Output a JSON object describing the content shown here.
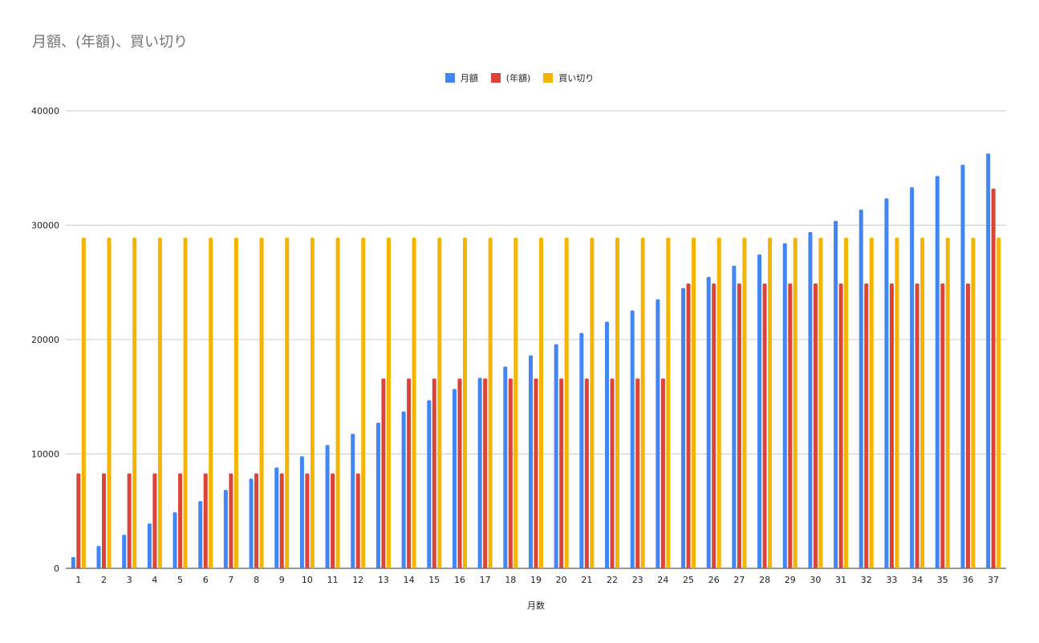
{
  "chart_data": {
    "type": "bar",
    "title": "月額、(年額)、買い切り",
    "xlabel": "月数",
    "ylabel": "",
    "ylim": [
      0,
      40000
    ],
    "yticks": [
      0,
      10000,
      20000,
      30000,
      40000
    ],
    "grid": true,
    "legend_position": "top",
    "categories": [
      "1",
      "2",
      "3",
      "4",
      "5",
      "6",
      "7",
      "8",
      "9",
      "10",
      "11",
      "12",
      "13",
      "14",
      "15",
      "16",
      "17",
      "18",
      "19",
      "20",
      "21",
      "22",
      "23",
      "24",
      "25",
      "26",
      "27",
      "28",
      "29",
      "30",
      "31",
      "32",
      "33",
      "34",
      "35",
      "36",
      "37"
    ],
    "series": [
      {
        "name": "月額",
        "color": "#4285f4",
        "values": [
          980,
          1960,
          2940,
          3920,
          4900,
          5880,
          6860,
          7840,
          8820,
          9800,
          10780,
          11760,
          12740,
          13720,
          14700,
          15680,
          16660,
          17640,
          18620,
          19600,
          20580,
          21560,
          22540,
          23520,
          24500,
          25480,
          26460,
          27440,
          28420,
          29400,
          30380,
          31360,
          32340,
          33320,
          34300,
          35280,
          36260
        ]
      },
      {
        "name": "(年額)",
        "color": "#db4437",
        "values": [
          8300,
          8300,
          8300,
          8300,
          8300,
          8300,
          8300,
          8300,
          8300,
          8300,
          8300,
          8300,
          16600,
          16600,
          16600,
          16600,
          16600,
          16600,
          16600,
          16600,
          16600,
          16600,
          16600,
          16600,
          24900,
          24900,
          24900,
          24900,
          24900,
          24900,
          24900,
          24900,
          24900,
          24900,
          24900,
          24900,
          33200
        ]
      },
      {
        "name": "買い切り",
        "color": "#f4b400",
        "values": [
          28900,
          28900,
          28900,
          28900,
          28900,
          28900,
          28900,
          28900,
          28900,
          28900,
          28900,
          28900,
          28900,
          28900,
          28900,
          28900,
          28900,
          28900,
          28900,
          28900,
          28900,
          28900,
          28900,
          28900,
          28900,
          28900,
          28900,
          28900,
          28900,
          28900,
          28900,
          28900,
          28900,
          28900,
          28900,
          28900,
          28900
        ]
      }
    ]
  }
}
